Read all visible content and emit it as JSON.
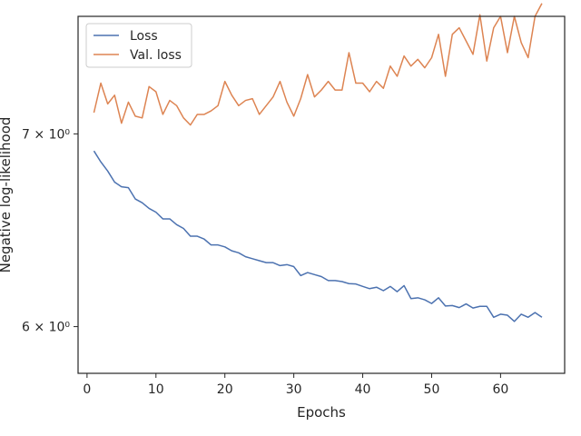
{
  "chart_data": {
    "type": "line",
    "title": "",
    "xlabel": "Epochs",
    "ylabel": "Negative log-likelihood",
    "x_scale": "linear",
    "y_scale": "log",
    "xlim": [
      -1.3,
      69.3
    ],
    "ylim": [
      5.78,
      7.69
    ],
    "x_ticks": [
      0,
      10,
      20,
      30,
      40,
      50,
      60
    ],
    "x_tick_labels": [
      "0",
      "10",
      "20",
      "30",
      "40",
      "50",
      "60"
    ],
    "y_ticks": [
      6,
      7
    ],
    "y_tick_labels": [
      "6 × 10⁰",
      "7 × 10⁰"
    ],
    "grid": false,
    "legend_position": "upper-left",
    "x": [
      1,
      2,
      3,
      4,
      5,
      6,
      7,
      8,
      9,
      10,
      11,
      12,
      13,
      14,
      15,
      16,
      17,
      18,
      19,
      20,
      21,
      22,
      23,
      24,
      25,
      26,
      27,
      28,
      29,
      30,
      31,
      32,
      33,
      34,
      35,
      36,
      37,
      38,
      39,
      40,
      41,
      42,
      43,
      44,
      45,
      46,
      47,
      48,
      49,
      50,
      51,
      52,
      53,
      54,
      55,
      56,
      57,
      58,
      59,
      60,
      61,
      62,
      63,
      64,
      65,
      66
    ],
    "series": [
      {
        "name": "Loss",
        "color": "#4c72b0",
        "values": [
          6.905,
          6.845,
          6.795,
          6.735,
          6.71,
          6.705,
          6.645,
          6.625,
          6.595,
          6.575,
          6.54,
          6.54,
          6.51,
          6.49,
          6.45,
          6.45,
          6.435,
          6.405,
          6.405,
          6.395,
          6.375,
          6.365,
          6.345,
          6.335,
          6.325,
          6.315,
          6.315,
          6.3,
          6.305,
          6.295,
          6.25,
          6.265,
          6.255,
          6.245,
          6.225,
          6.225,
          6.22,
          6.21,
          6.208,
          6.196,
          6.185,
          6.192,
          6.175,
          6.196,
          6.17,
          6.2,
          6.136,
          6.14,
          6.13,
          6.112,
          6.14,
          6.1,
          6.102,
          6.092,
          6.11,
          6.09,
          6.098,
          6.098,
          6.045,
          6.06,
          6.055,
          6.025,
          6.06,
          6.045,
          6.068,
          6.045
        ]
      },
      {
        "name": "Val. loss",
        "color": "#dd8452",
        "values": [
          7.12,
          7.29,
          7.17,
          7.22,
          7.06,
          7.18,
          7.1,
          7.09,
          7.27,
          7.24,
          7.11,
          7.19,
          7.16,
          7.09,
          7.05,
          7.11,
          7.11,
          7.13,
          7.16,
          7.3,
          7.22,
          7.16,
          7.19,
          7.2,
          7.11,
          7.16,
          7.21,
          7.3,
          7.18,
          7.1,
          7.2,
          7.34,
          7.21,
          7.25,
          7.3,
          7.25,
          7.25,
          7.47,
          7.29,
          7.29,
          7.24,
          7.3,
          7.26,
          7.39,
          7.33,
          7.45,
          7.39,
          7.43,
          7.38,
          7.44,
          7.58,
          7.33,
          7.58,
          7.62,
          7.54,
          7.46,
          7.7,
          7.42,
          7.62,
          7.69,
          7.47,
          7.69,
          7.53,
          7.44,
          7.69,
          7.77
        ]
      }
    ]
  }
}
